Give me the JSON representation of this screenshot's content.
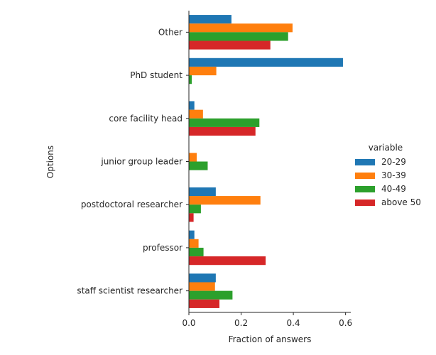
{
  "chart_data": {
    "type": "bar",
    "orientation": "horizontal",
    "categories": [
      "Other",
      "PhD student",
      "core facility head",
      "junior group leader",
      "postdoctoral researcher",
      "professor",
      "staff scientist researcher"
    ],
    "series": [
      {
        "name": "20-29",
        "color": "#1f77b4",
        "values": [
          0.163,
          0.59,
          0.021,
          0.0,
          0.103,
          0.021,
          0.103
        ]
      },
      {
        "name": "30-39",
        "color": "#ff7f0e",
        "values": [
          0.397,
          0.105,
          0.054,
          0.03,
          0.274,
          0.037,
          0.1
        ]
      },
      {
        "name": "40-49",
        "color": "#2ca02c",
        "values": [
          0.38,
          0.011,
          0.27,
          0.072,
          0.046,
          0.056,
          0.167
        ]
      },
      {
        "name": "above 50",
        "color": "#d62728",
        "values": [
          0.312,
          0.0,
          0.255,
          0.0,
          0.018,
          0.294,
          0.117
        ]
      }
    ],
    "xlabel": "Fraction of answers",
    "ylabel": "Options",
    "xlim": [
      0,
      0.62
    ],
    "xticks": [
      0.0,
      0.2,
      0.4,
      0.6
    ],
    "xtick_labels": [
      "0.0",
      "0.2",
      "0.4",
      "0.6"
    ],
    "grid": false,
    "legend": {
      "title": "variable",
      "placement": "right"
    }
  }
}
